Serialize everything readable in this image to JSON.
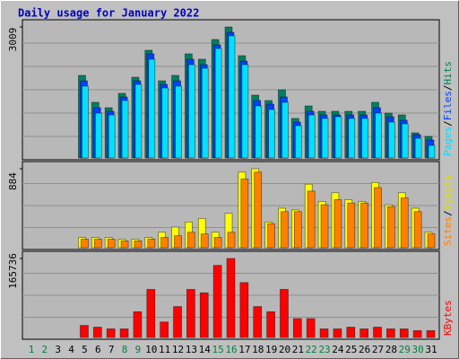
{
  "chart_data": {
    "type": "bar",
    "title": "Daily usage for January 2022",
    "categories": [
      1,
      2,
      3,
      4,
      5,
      6,
      7,
      8,
      9,
      10,
      11,
      12,
      13,
      14,
      15,
      16,
      17,
      18,
      19,
      20,
      21,
      22,
      23,
      24,
      25,
      26,
      27,
      28,
      29,
      30,
      31
    ],
    "label_colors": [
      "#008040",
      "#008040",
      "#000000",
      "#000000",
      "#000000",
      "#000000",
      "#000000",
      "#008040",
      "#008040",
      "#000000",
      "#000000",
      "#000000",
      "#000000",
      "#000000",
      "#008040",
      "#008040",
      "#000000",
      "#000000",
      "#000000",
      "#000000",
      "#000000",
      "#008040",
      "#008040",
      "#000000",
      "#000000",
      "#000000",
      "#000000",
      "#000000",
      "#008040",
      "#008040",
      "#000000"
    ],
    "legend_separator": "/",
    "panels": [
      {
        "ylim": [
          0,
          3009
        ],
        "yticks": [
          3009
        ],
        "series": [
          {
            "name": "Hits",
            "color": "#008060",
            "values": [
              0,
              0,
              0,
              0,
              1896,
              1278,
              1154,
              1484,
              1855,
              2473,
              1772,
              1896,
              2391,
              2267,
              2720,
              3009,
              2349,
              1443,
              1319,
              1566,
              907,
              1195,
              1072,
              1072,
              1072,
              1072,
              1278,
              1030,
              989,
              577,
              495
            ]
          },
          {
            "name": "Files",
            "color": "#0040ff",
            "values": [
              0,
              0,
              0,
              0,
              1772,
              1154,
              1072,
              1401,
              1772,
              2391,
              1690,
              1772,
              2267,
              2143,
              2597,
              2885,
              2226,
              1319,
              1237,
              1401,
              824,
              1072,
              989,
              989,
              989,
              989,
              1154,
              948,
              866,
              536,
              412
            ]
          },
          {
            "name": "Pages",
            "color": "#00e0ff",
            "values": [
              0,
              0,
              0,
              0,
              1649,
              1030,
              989,
              1319,
              1690,
              2267,
              1607,
              1649,
              2143,
              2061,
              2514,
              2803,
              2143,
              1195,
              1113,
              1278,
              742,
              989,
              907,
              948,
              907,
              907,
              1030,
              824,
              783,
              453,
              288
            ]
          }
        ]
      },
      {
        "ylim": [
          0,
          884
        ],
        "yticks": [
          884
        ],
        "series": [
          {
            "name": "Visits",
            "color": "#ffff00",
            "values": [
              0,
              0,
              0,
              0,
              115,
              115,
              115,
              96,
              96,
              115,
              173,
              231,
              288,
              327,
              173,
              384,
              846,
              884,
              288,
              442,
              423,
              711,
              519,
              615,
              538,
              519,
              730,
              481,
              615,
              442,
              173
            ]
          },
          {
            "name": "Sites",
            "color": "#ff8000",
            "values": [
              0,
              0,
              0,
              0,
              96,
              96,
              96,
              77,
              77,
              96,
              115,
              134,
              173,
              154,
              115,
              173,
              769,
              846,
              269,
              404,
              404,
              634,
              481,
              538,
              500,
              500,
              673,
              461,
              557,
              404,
              154
            ]
          }
        ]
      },
      {
        "ylim": [
          0,
          165736
        ],
        "yticks": [
          165736
        ],
        "series": [
          {
            "name": "KBytes",
            "color": "#ff0000",
            "values": [
              0,
              0,
              0,
              0,
              25215,
              21612,
              18010,
              18010,
              54030,
              100856,
              32418,
              64836,
              100856,
              93652,
              151284,
              165736,
              115264,
              64836,
              54030,
              100856,
              39622,
              39622,
              18010,
              18010,
              21612,
              18010,
              21612,
              18010,
              18010,
              14408,
              14408
            ]
          }
        ]
      }
    ]
  }
}
